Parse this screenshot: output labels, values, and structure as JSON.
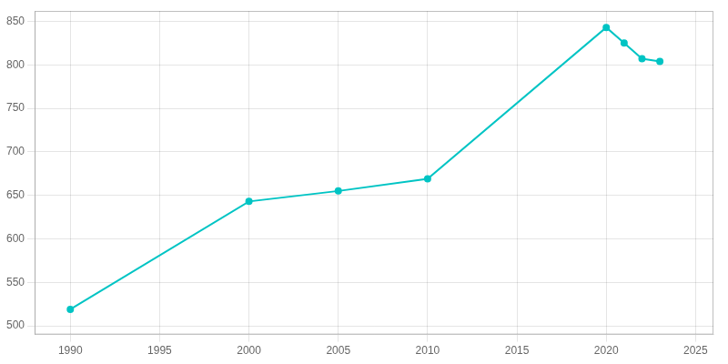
{
  "chart_data": {
    "type": "line",
    "x": [
      1990,
      2000,
      2005,
      2010,
      2020,
      2021,
      2022,
      2023
    ],
    "values": [
      519,
      643,
      655,
      669,
      843,
      825,
      807,
      804
    ],
    "color": "#00C4C4",
    "marker": "circle",
    "xlim": [
      1988,
      2026
    ],
    "ylim": [
      490,
      862
    ],
    "xticks": [
      1990,
      1995,
      2000,
      2005,
      2010,
      2015,
      2020,
      2025
    ],
    "yticks": [
      500,
      550,
      600,
      650,
      700,
      750,
      800,
      850
    ],
    "grid": true
  }
}
